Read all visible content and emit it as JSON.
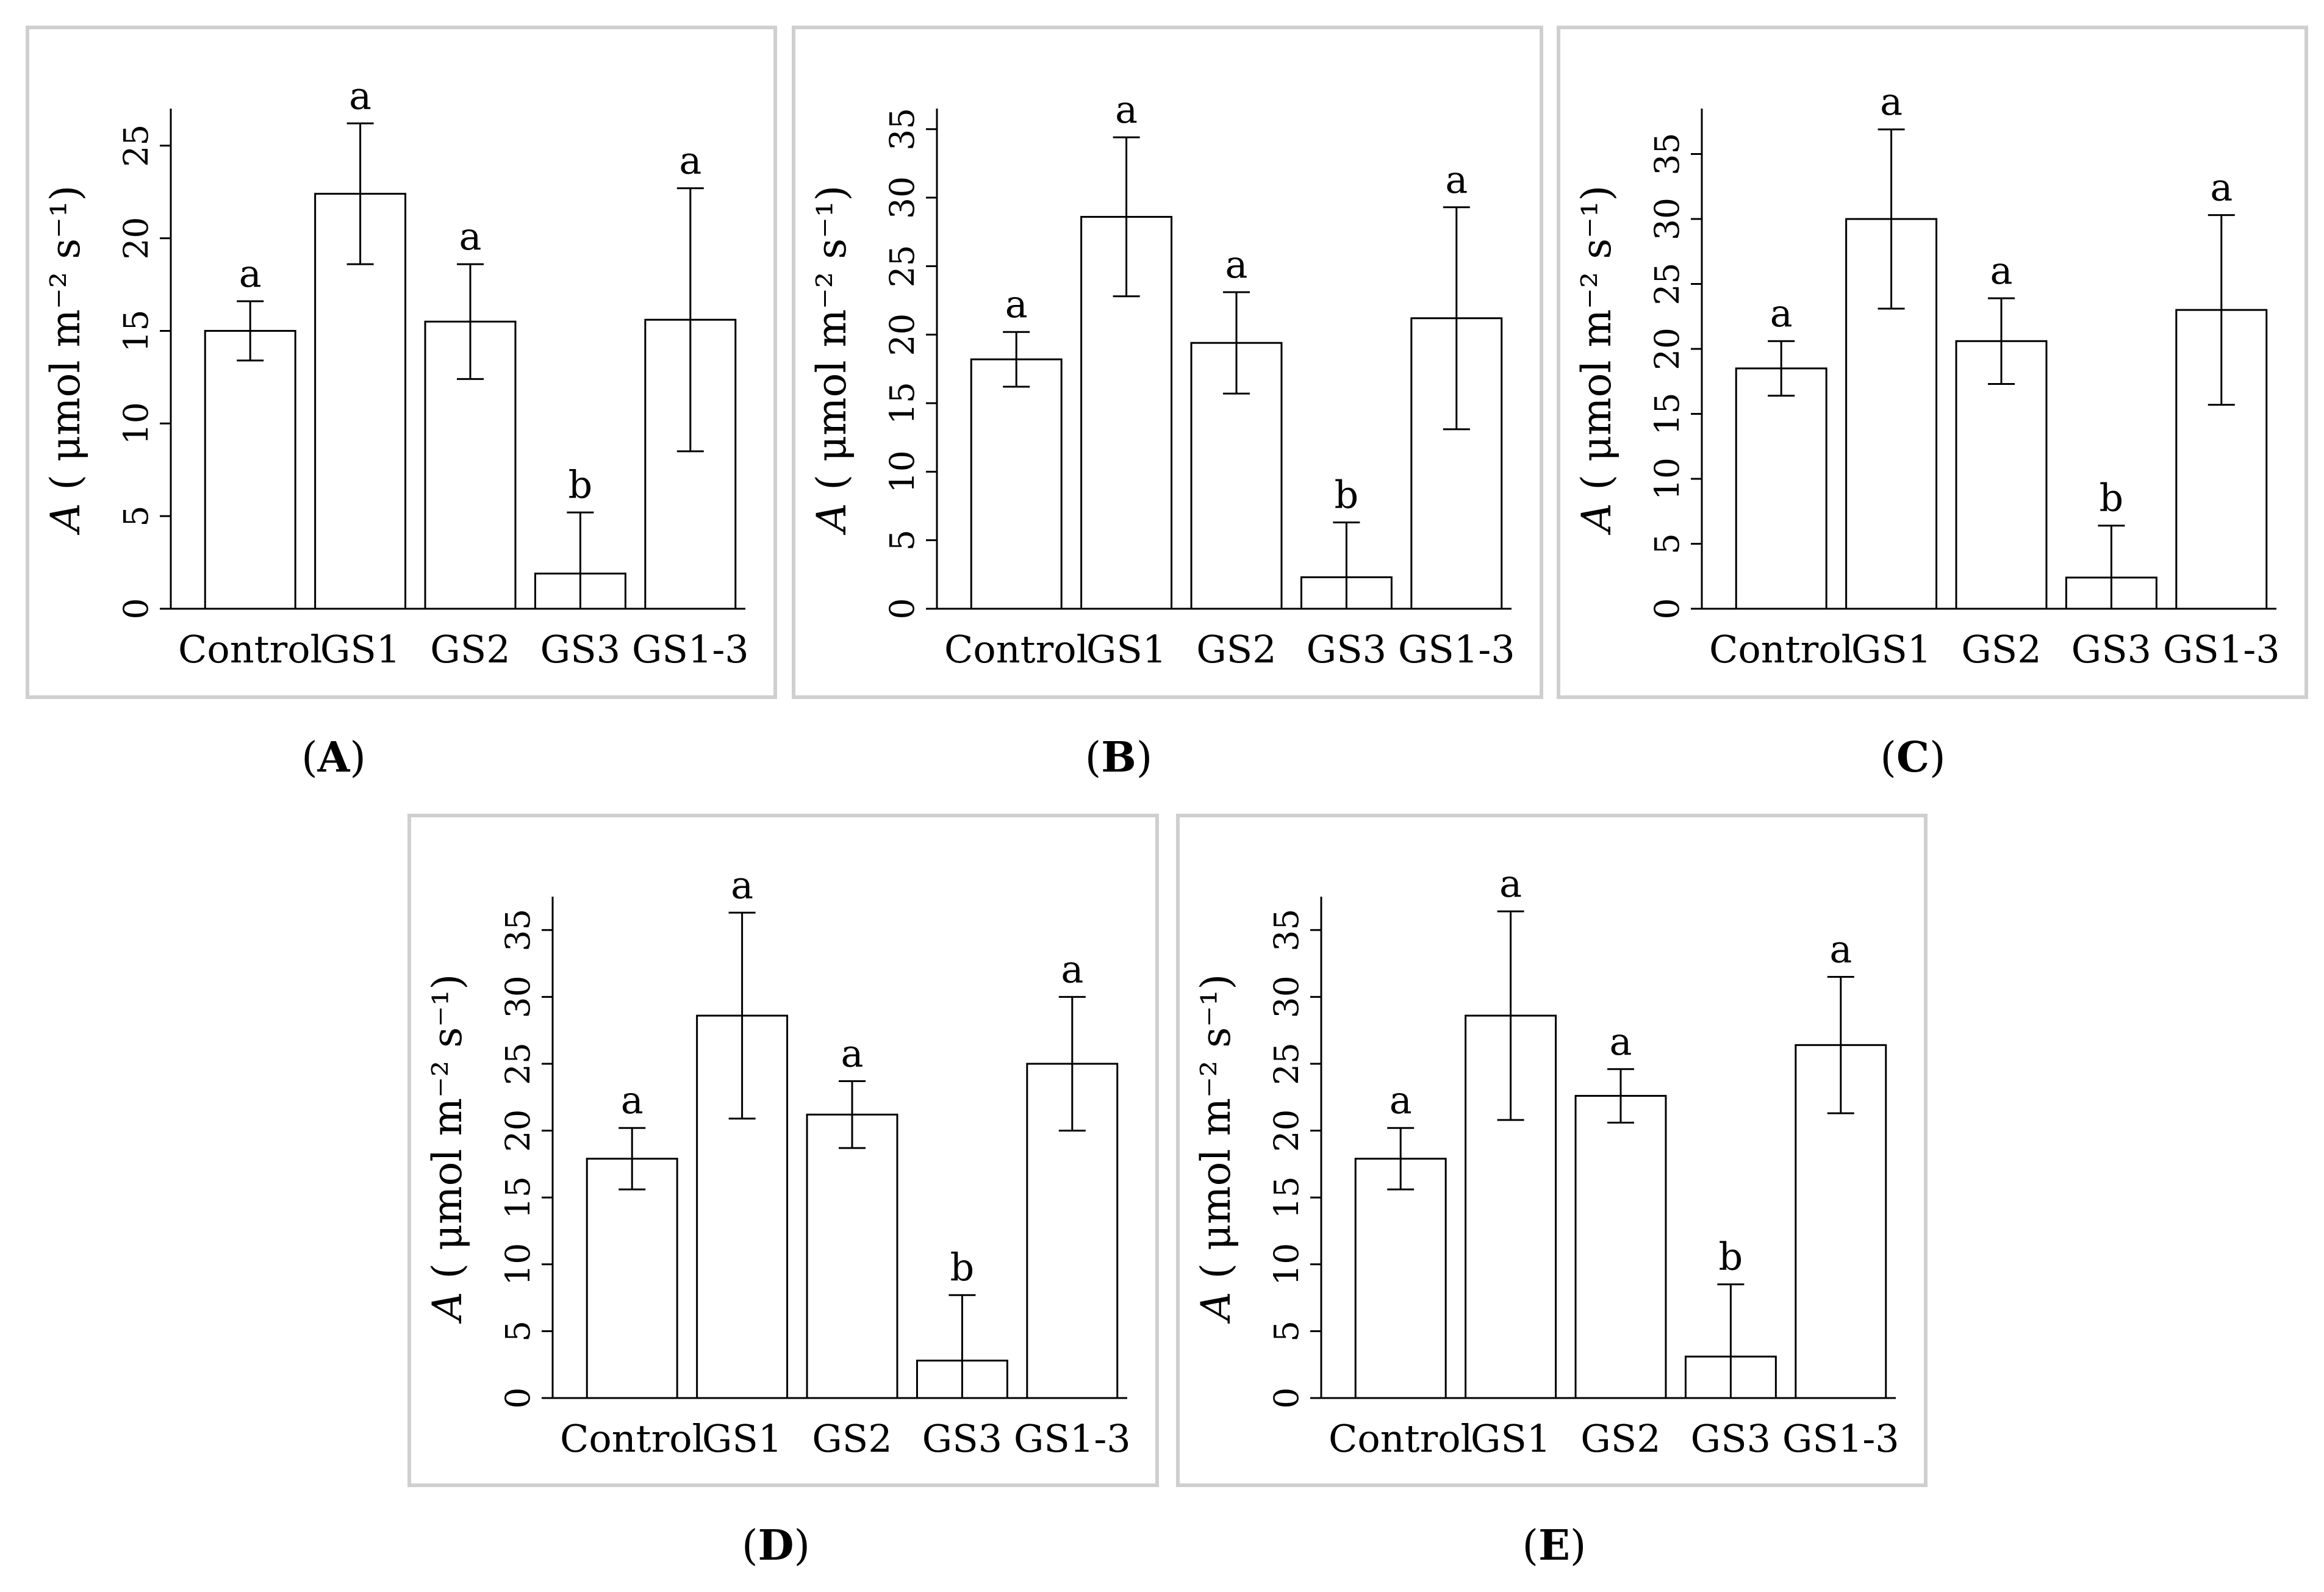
{
  "figure": {
    "panel_captions": [
      "A",
      "B",
      "C",
      "D",
      "E"
    ]
  },
  "chart_data": [
    {
      "type": "bar",
      "panel": "A",
      "ylabel_symbol": "A",
      "ylabel_unit": "( μmol m⁻² s⁻¹)",
      "categories": [
        "Control",
        "GS1",
        "GS2",
        "GS3",
        "GS1-3"
      ],
      "values": [
        15.0,
        22.4,
        15.5,
        1.9,
        15.6
      ],
      "errors": [
        1.6,
        3.8,
        3.1,
        3.3,
        7.1
      ],
      "significance": [
        "a",
        "a",
        "a",
        "b",
        "a"
      ],
      "yticks": [
        0,
        5,
        10,
        15,
        20,
        25
      ],
      "ylim": [
        0,
        27
      ]
    },
    {
      "type": "bar",
      "panel": "B",
      "ylabel_symbol": "A",
      "ylabel_unit": "( μmol m⁻² s⁻¹)",
      "categories": [
        "Control",
        "GS1",
        "GS2",
        "GS3",
        "GS1-3"
      ],
      "values": [
        18.2,
        28.6,
        19.4,
        2.3,
        21.2
      ],
      "errors": [
        2.0,
        5.8,
        3.7,
        4.0,
        8.1
      ],
      "significance": [
        "a",
        "a",
        "a",
        "b",
        "a"
      ],
      "yticks": [
        0,
        5,
        10,
        15,
        20,
        25,
        30,
        35
      ],
      "ylim": [
        0,
        36.5
      ]
    },
    {
      "type": "bar",
      "panel": "C",
      "ylabel_symbol": "A",
      "ylabel_unit": "( μmol m⁻² s⁻¹)",
      "categories": [
        "Control",
        "GS1",
        "GS2",
        "GS3",
        "GS1-3"
      ],
      "values": [
        18.5,
        30.0,
        20.6,
        2.4,
        23.0
      ],
      "errors": [
        2.1,
        6.9,
        3.3,
        4.0,
        7.3
      ],
      "significance": [
        "a",
        "a",
        "a",
        "b",
        "a"
      ],
      "yticks": [
        0,
        5,
        10,
        15,
        20,
        25,
        30,
        35
      ],
      "ylim": [
        0,
        38.5
      ]
    },
    {
      "type": "bar",
      "panel": "D",
      "ylabel_symbol": "A",
      "ylabel_unit": "( μmol m⁻² s⁻¹)",
      "categories": [
        "Control",
        "GS1",
        "GS2",
        "GS3",
        "GS1-3"
      ],
      "values": [
        17.9,
        28.6,
        21.2,
        2.8,
        25.0
      ],
      "errors": [
        2.3,
        7.7,
        2.5,
        4.9,
        5.0
      ],
      "significance": [
        "a",
        "a",
        "a",
        "b",
        "a"
      ],
      "yticks": [
        0,
        5,
        10,
        15,
        20,
        25,
        30,
        35
      ],
      "ylim": [
        0,
        37.5
      ]
    },
    {
      "type": "bar",
      "panel": "E",
      "ylabel_symbol": "A",
      "ylabel_unit": "( μmol m⁻² s⁻¹)",
      "categories": [
        "Control",
        "GS1",
        "GS2",
        "GS3",
        "GS1-3"
      ],
      "values": [
        17.9,
        28.6,
        22.6,
        3.1,
        26.4
      ],
      "errors": [
        2.3,
        7.8,
        2.0,
        5.4,
        5.1
      ],
      "significance": [
        "a",
        "a",
        "a",
        "b",
        "a"
      ],
      "yticks": [
        0,
        5,
        10,
        15,
        20,
        25,
        30,
        35
      ],
      "ylim": [
        0,
        37.5
      ]
    }
  ]
}
